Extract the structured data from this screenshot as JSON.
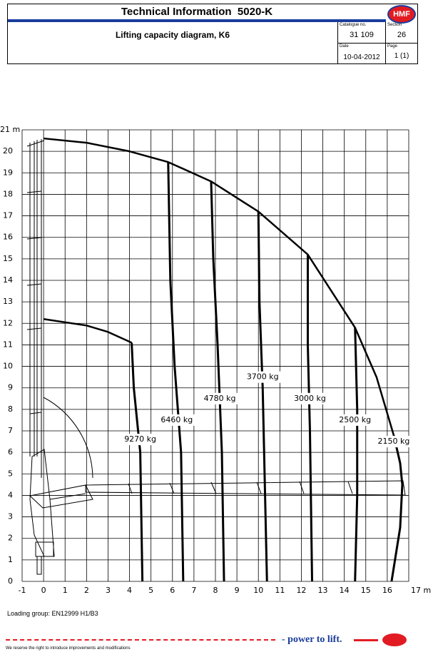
{
  "header": {
    "title": "Technical Information  5020-K",
    "logo": "HMF",
    "subtitle": "Lifting capacity diagram, K6",
    "catalogue_label": "Catalogue no.",
    "catalogue": "31 109",
    "section_label": "Section",
    "section": "26",
    "date_label": "Date",
    "date": "10-04-2012",
    "page_label": "Page",
    "page": "1 (1)"
  },
  "chart_data": {
    "type": "line",
    "xlim": [
      -1,
      17
    ],
    "ylim": [
      0,
      21
    ],
    "xticks": [
      -1,
      0,
      1,
      2,
      3,
      4,
      5,
      6,
      7,
      8,
      9,
      10,
      11,
      12,
      13,
      14,
      15,
      16,
      {
        "value": 17,
        "label": "17 m"
      }
    ],
    "yticks": [
      0,
      1,
      2,
      3,
      4,
      5,
      6,
      7,
      8,
      9,
      10,
      11,
      12,
      13,
      14,
      15,
      16,
      17,
      18,
      19,
      20,
      {
        "value": 21,
        "label": "21 m"
      }
    ],
    "grid": true,
    "color": "#000000",
    "envelope": {
      "x": [
        0,
        2,
        4,
        5.8,
        7.8,
        10,
        12.3,
        14.5,
        15.5,
        16.3
      ],
      "y": [
        20.6,
        20.4,
        20,
        19.5,
        18.6,
        17.2,
        15.2,
        11.8,
        9.5,
        6.8
      ]
    },
    "inner": {
      "x": [
        0,
        2,
        3,
        4.1
      ],
      "y": [
        12.2,
        11.9,
        11.6,
        11.1
      ]
    },
    "series": [
      {
        "name": "9270 kg",
        "x": [
          4.1,
          4.2,
          4.5,
          4.6
        ],
        "y": [
          11.1,
          9,
          6,
          0
        ]
      },
      {
        "name": "6460 kg",
        "x": [
          5.8,
          5.9,
          6.1,
          6.4,
          6.5
        ],
        "y": [
          19.5,
          14,
          10,
          6,
          0
        ]
      },
      {
        "name": "4780 kg",
        "x": [
          7.8,
          7.9,
          8.1,
          8.3,
          8.4
        ],
        "y": [
          18.6,
          15,
          11,
          6,
          0
        ]
      },
      {
        "name": "3700 kg",
        "x": [
          10,
          10.05,
          10.2,
          10.4
        ],
        "y": [
          17.2,
          13,
          9,
          0
        ]
      },
      {
        "name": "3000 kg",
        "x": [
          12.3,
          12.3,
          12.4,
          12.5
        ],
        "y": [
          15.2,
          11,
          7,
          0
        ]
      },
      {
        "name": "2500 kg",
        "x": [
          14.5,
          14.6,
          14.6,
          14.5
        ],
        "y": [
          11.8,
          8,
          4,
          0
        ]
      },
      {
        "name": "2150 kg",
        "x": [
          16.3,
          16.6,
          16.7,
          16.6,
          16.2
        ],
        "y": [
          6.8,
          5.5,
          4.5,
          2.5,
          0
        ]
      }
    ]
  },
  "footer": {
    "loading_group": "Loading group: EN12999 H1/B3",
    "slogan": "- power to lift.",
    "notice": "We reserve the right to introduce improvements and modifications"
  }
}
